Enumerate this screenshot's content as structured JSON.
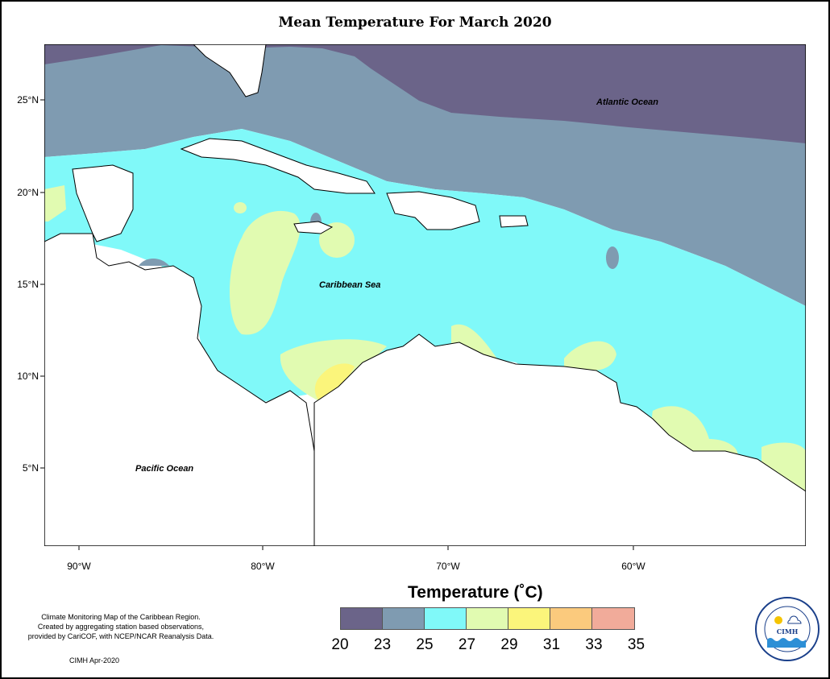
{
  "title": "Mean Temperature For March 2020",
  "map": {
    "labels": {
      "atlantic": "Atlantic Ocean",
      "caribbean": "Caribbean Sea",
      "pacific": "Pacific Ocean"
    },
    "lat_ticks": [
      "25°N",
      "20°N",
      "15°N",
      "10°N",
      "5°N"
    ],
    "lon_ticks": [
      "90°W",
      "80°W",
      "70°W",
      "60°W"
    ]
  },
  "legend": {
    "title": "Temperature (˚C)",
    "colors": [
      "#6b6489",
      "#7f9bb1",
      "#80f9f9",
      "#e1fbb1",
      "#fbf57b",
      "#fbca7d",
      "#f1ab9a"
    ],
    "ticks": [
      "20",
      "23",
      "25",
      "27",
      "29",
      "31",
      "33",
      "35"
    ]
  },
  "credits": {
    "lines": [
      "Climate Monitoring Map of the Caribbean Region.",
      "Created by aggregating station based observations,",
      "provided by CariCOF, with NCEP/NCAR Reanalysis Data."
    ],
    "date": "CIMH Apr-2020"
  },
  "logo": {
    "text": "CIMH",
    "ring_text": "Caribbean Institute for Meteorology and Hydrology"
  }
}
